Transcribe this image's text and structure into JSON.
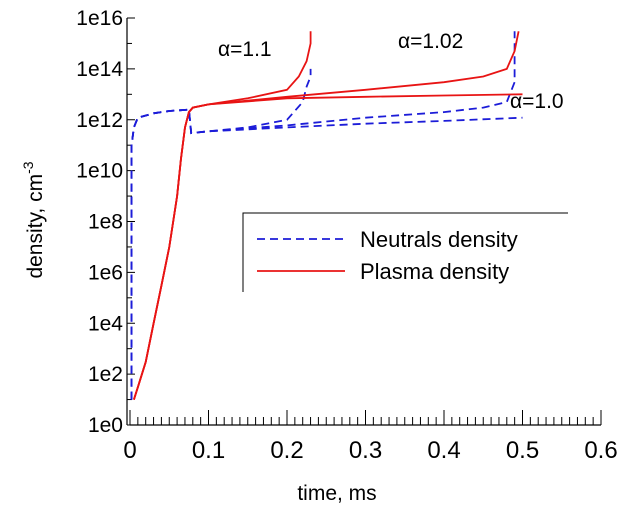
{
  "chart_data": {
    "type": "line",
    "x_label": "time, ms",
    "y_label": "density, cm",
    "y_label_sup": "-3",
    "xlim": [
      0,
      0.6
    ],
    "xticks": [
      0,
      0.1,
      0.2,
      0.3,
      0.4,
      0.5,
      0.6
    ],
    "ylim": [
      1,
      1e+16
    ],
    "log_y": true,
    "yticks": [
      {
        "value": 1,
        "label": "1e0"
      },
      {
        "value": 100,
        "label": "1e2"
      },
      {
        "value": 10000,
        "label": "1e4"
      },
      {
        "value": 1000000,
        "label": "1e6"
      },
      {
        "value": 100000000,
        "label": "1e8"
      },
      {
        "value": 10000000000,
        "label": "1e10"
      },
      {
        "value": 1000000000000,
        "label": "1e12"
      },
      {
        "value": 100000000000000,
        "label": "1e14"
      },
      {
        "value": 10000000000000000,
        "label": "1e16"
      }
    ],
    "legend": "center-right",
    "annotations": [
      "α=1.1",
      "α=1.02",
      "α=1.0"
    ],
    "series": [
      {
        "name": "Neutrals density",
        "color": "#1c1cd8",
        "dashed": true,
        "curves": [
          {
            "x": [
              0.002,
              0.002,
              0.005,
              0.01,
              0.03,
              0.05,
              0.075,
              0.078,
              0.1,
              0.15,
              0.2,
              0.22,
              0.225,
              0.23,
              0.23
            ],
            "values": [
              10,
              100000000000.0,
              500000000000.0,
              1200000000000.0,
              1800000000000.0,
              2200000000000.0,
              2500000000000.0,
              300000000000.0,
              350000000000.0,
              500000000000.0,
              1000000000000.0,
              5000000000000.0,
              20000000000000.0,
              50000000000000.0,
              100000000000000.0
            ]
          },
          {
            "x": [
              0.002,
              0.002,
              0.005,
              0.01,
              0.03,
              0.05,
              0.075,
              0.078,
              0.1,
              0.2,
              0.3,
              0.4,
              0.45,
              0.48,
              0.49,
              0.49
            ],
            "values": [
              10,
              100000000000.0,
              500000000000.0,
              1200000000000.0,
              1800000000000.0,
              2200000000000.0,
              2500000000000.0,
              300000000000.0,
              350000000000.0,
              600000000000.0,
              1200000000000.0,
              2000000000000.0,
              3000000000000.0,
              5000000000000.0,
              30000000000000.0,
              3000000000000000.0
            ]
          },
          {
            "x": [
              0.002,
              0.002,
              0.005,
              0.01,
              0.03,
              0.05,
              0.075,
              0.078,
              0.1,
              0.2,
              0.3,
              0.4,
              0.5
            ],
            "values": [
              10,
              100000000000.0,
              500000000000.0,
              1200000000000.0,
              1800000000000.0,
              2200000000000.0,
              2500000000000.0,
              300000000000.0,
              350000000000.0,
              500000000000.0,
              700000000000.0,
              900000000000.0,
              1200000000000.0
            ]
          }
        ]
      },
      {
        "name": "Plasma density",
        "color": "#e81414",
        "dashed": false,
        "curves": [
          {
            "x": [
              0.005,
              0.01,
              0.02,
              0.03,
              0.04,
              0.05,
              0.06,
              0.065,
              0.07,
              0.075,
              0.08,
              0.1,
              0.15,
              0.2,
              0.215,
              0.225,
              0.23,
              0.23
            ],
            "values": [
              10,
              30,
              300,
              10000,
              300000,
              10000000,
              1000000000,
              30000000000,
              500000000000.0,
              2000000000000.0,
              3000000000000.0,
              4000000000000.0,
              7000000000000.0,
              15000000000000.0,
              50000000000000.0,
              200000000000000.0,
              1000000000000000.0,
              3000000000000000.0
            ]
          },
          {
            "x": [
              0.005,
              0.01,
              0.02,
              0.03,
              0.04,
              0.05,
              0.06,
              0.065,
              0.07,
              0.075,
              0.08,
              0.1,
              0.2,
              0.3,
              0.4,
              0.45,
              0.48,
              0.49,
              0.495
            ],
            "values": [
              10,
              30,
              300,
              10000,
              300000,
              10000000,
              1000000000,
              30000000000,
              500000000000.0,
              2000000000000.0,
              3000000000000.0,
              4000000000000.0,
              8000000000000.0,
              15000000000000.0,
              30000000000000.0,
              50000000000000.0,
              100000000000000.0,
              500000000000000.0,
              3000000000000000.0
            ]
          },
          {
            "x": [
              0.005,
              0.01,
              0.02,
              0.03,
              0.04,
              0.05,
              0.06,
              0.065,
              0.07,
              0.075,
              0.08,
              0.1,
              0.2,
              0.3,
              0.4,
              0.5
            ],
            "values": [
              10,
              30,
              300,
              10000,
              300000,
              10000000,
              1000000000,
              30000000000,
              500000000000.0,
              2000000000000.0,
              3000000000000.0,
              4000000000000.0,
              7000000000000.0,
              8000000000000.0,
              9000000000000.0,
              10000000000000.0
            ]
          }
        ]
      }
    ]
  }
}
